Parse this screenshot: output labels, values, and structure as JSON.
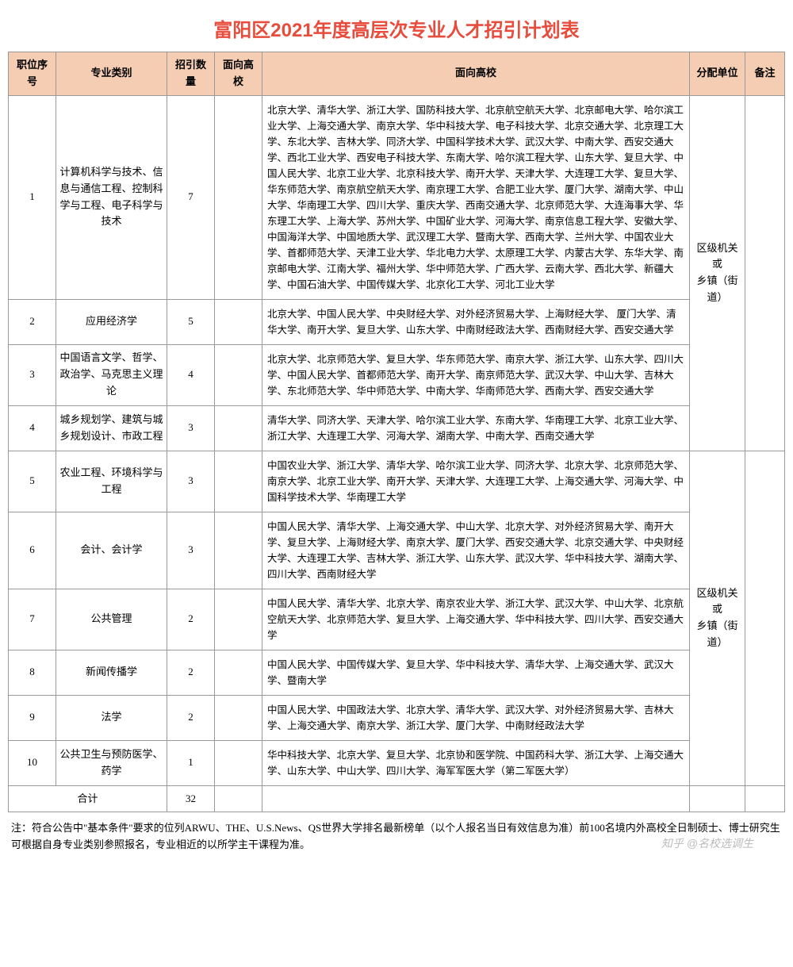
{
  "title": "富阳区2021年度高层次专业人才招引计划表",
  "headers": {
    "no": "职位序号",
    "major": "专业类别",
    "count": "招引数量",
    "target1": "面向高校",
    "universities": "面向高校",
    "unit": "分配单位",
    "remark": "备注"
  },
  "unit_label": "区级机关或\n乡镇（街道）",
  "rows": [
    {
      "no": "1",
      "major": "计算机科学与技术、信息与通信工程、控制科学与工程、电子科学与技术",
      "count": "7",
      "universities": "北京大学、清华大学、浙江大学、国防科技大学、北京航空航天大学、北京邮电大学、哈尔滨工业大学、上海交通大学、南京大学、华中科技大学、电子科技大学、北京交通大学、北京理工大学、东北大学、吉林大学、同济大学、中国科学技术大学、武汉大学、中南大学、西安交通大学、西北工业大学、西安电子科技大学、东南大学、哈尔滨工程大学、山东大学、复旦大学、中国人民大学、北京工业大学、北京科技大学、南开大学、天津大学、大连理工大学、复旦大学、华东师范大学、南京航空航天大学、南京理工大学、合肥工业大学、厦门大学、湖南大学、中山大学、华南理工大学、四川大学、重庆大学、西南交通大学、北京师范大学、大连海事大学、华东理工大学、上海大学、苏州大学、中国矿业大学、河海大学、南京信息工程大学、安徽大学、中国海洋大学、中国地质大学、武汉理工大学、暨南大学、西南大学、兰州大学、中国农业大学、首都师范大学、天津工业大学、华北电力大学、太原理工大学、内蒙古大学、东华大学、南京邮电大学、江南大学、福州大学、华中师范大学、广西大学、云南大学、西北大学、新疆大学、中国石油大学、中国传媒大学、北京化工大学、河北工业大学"
    },
    {
      "no": "2",
      "major": "应用经济学",
      "count": "5",
      "universities": "北京大学、中国人民大学、中央财经大学、对外经济贸易大学、上海财经大学、 厦门大学、清华大学、南开大学、复旦大学、山东大学、中南财经政法大学、西南财经大学、西安交通大学"
    },
    {
      "no": "3",
      "major": "中国语言文学、哲学、政治学、马克思主义理论",
      "count": "4",
      "universities": "北京大学、北京师范大学、复旦大学、华东师范大学、南京大学、浙江大学、山东大学、四川大学、中国人民大学、首都师范大学、南开大学、南京师范大学、武汉大学、中山大学、吉林大学、东北师范大学、华中师范大学、中南大学、华南师范大学、西南大学、西安交通大学"
    },
    {
      "no": "4",
      "major": "城乡规划学、建筑与城乡规划设计、市政工程",
      "count": "3",
      "universities": "清华大学、同济大学、天津大学、哈尔滨工业大学、东南大学、华南理工大学、北京工业大学、浙江大学、大连理工大学、河海大学、湖南大学、中南大学、西南交通大学"
    },
    {
      "no": "5",
      "major": "农业工程、环境科学与工程",
      "count": "3",
      "universities": "中国农业大学、浙江大学、清华大学、哈尔滨工业大学、同济大学、北京大学、北京师范大学、南京大学、北京工业大学、南开大学、天津大学、大连理工大学、上海交通大学、河海大学、中国科学技术大学、华南理工大学"
    },
    {
      "no": "6",
      "major": "会计、会计学",
      "count": "3",
      "universities": "中国人民大学、清华大学、上海交通大学、中山大学、北京大学、对外经济贸易大学、南开大学、复旦大学、上海财经大学、南京大学、厦门大学、西安交通大学、北京交通大学、中央财经大学、大连理工大学、吉林大学、浙江大学、山东大学、武汉大学、华中科技大学、湖南大学、四川大学、西南财经大学"
    },
    {
      "no": "7",
      "major": "公共管理",
      "count": "2",
      "universities": "中国人民大学、清华大学、北京大学、南京农业大学、浙江大学、武汉大学、中山大学、北京航空航天大学、北京师范大学、复旦大学、上海交通大学、华中科技大学、四川大学、西安交通大学"
    },
    {
      "no": "8",
      "major": "新闻传播学",
      "count": "2",
      "universities": "中国人民大学、中国传媒大学、复旦大学、华中科技大学、清华大学、上海交通大学、武汉大学、暨南大学"
    },
    {
      "no": "9",
      "major": "法学",
      "count": "2",
      "universities": "中国人民大学、中国政法大学、北京大学、清华大学、武汉大学、对外经济贸易大学、吉林大学、上海交通大学、南京大学、浙江大学、厦门大学、中南财经政法大学"
    },
    {
      "no": "10",
      "major": "公共卫生与预防医学、药学",
      "count": "1",
      "universities": "华中科技大学、北京大学、复旦大学、北京协和医学院、中国药科大学、浙江大学、上海交通大学、山东大学、中山大学、四川大学、海军军医大学（第二军医大学）"
    }
  ],
  "total_label": "合计",
  "total_count": "32",
  "footnote": "注：符合公告中\"基本条件\"要求的位列ARWU、THE、U.S.News、QS世界大学排名最新榜单（以个人报名当日有效信息为准）前100名境内外高校全日制硕士、博士研究生可根据自身专业类别参照报名，专业相近的以所学主干课程为准。",
  "watermark": "知乎 @名校选调生",
  "colors": {
    "title_color": "#e74c3c",
    "header_bg": "#f4cdb2",
    "border_color": "#999999",
    "background": "#ffffff"
  }
}
